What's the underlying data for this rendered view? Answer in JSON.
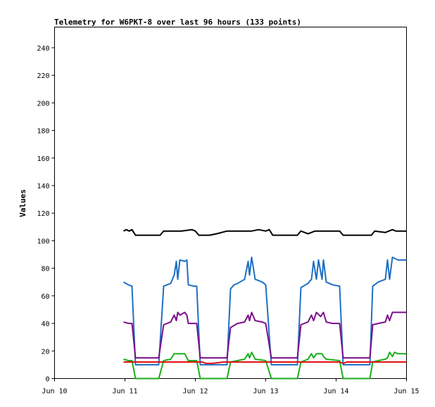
{
  "chart_data": {
    "type": "line",
    "title": "Telemetry for W6PKT-8 over last 96 hours (133 points)",
    "xlabel": "",
    "ylabel": "Values",
    "xlim": [
      0,
      5
    ],
    "ylim": [
      0,
      255
    ],
    "x_ticks": [
      {
        "value": 0,
        "label": "Jun 10"
      },
      {
        "value": 1,
        "label": "Jun 11"
      },
      {
        "value": 2,
        "label": "Jun 12"
      },
      {
        "value": 3,
        "label": "Jun 13"
      },
      {
        "value": 4,
        "label": "Jun 14"
      },
      {
        "value": 5,
        "label": "Jun 15"
      }
    ],
    "y_ticks": [
      0,
      20,
      40,
      60,
      80,
      100,
      120,
      140,
      160,
      180,
      200,
      220,
      240
    ],
    "grid": false,
    "colors": {
      "black": "#000000",
      "blue": "#1f6fc4",
      "purple": "#7b0f8a",
      "green": "#1aae1a",
      "red": "#e01010"
    },
    "series": [
      {
        "color": "#000000",
        "points": [
          [
            0.98,
            107
          ],
          [
            1.02,
            108
          ],
          [
            1.06,
            107
          ],
          [
            1.1,
            108
          ],
          [
            1.15,
            104
          ],
          [
            1.3,
            104
          ],
          [
            1.5,
            104
          ],
          [
            1.55,
            107
          ],
          [
            1.8,
            107
          ],
          [
            1.95,
            108
          ],
          [
            2.0,
            107
          ],
          [
            2.05,
            104
          ],
          [
            2.2,
            104
          ],
          [
            2.3,
            105
          ],
          [
            2.45,
            107
          ],
          [
            2.8,
            107
          ],
          [
            2.9,
            108
          ],
          [
            3.0,
            107
          ],
          [
            3.05,
            108
          ],
          [
            3.1,
            104
          ],
          [
            3.3,
            104
          ],
          [
            3.45,
            104
          ],
          [
            3.5,
            107
          ],
          [
            3.6,
            105
          ],
          [
            3.7,
            107
          ],
          [
            3.95,
            107
          ],
          [
            4.05,
            107
          ],
          [
            4.1,
            104
          ],
          [
            4.3,
            104
          ],
          [
            4.5,
            104
          ],
          [
            4.55,
            107
          ],
          [
            4.7,
            106
          ],
          [
            4.8,
            108
          ],
          [
            4.85,
            107
          ],
          [
            5.0,
            107
          ]
        ]
      },
      {
        "color": "#1f6fc4",
        "points": [
          [
            0.98,
            70
          ],
          [
            1.05,
            68
          ],
          [
            1.1,
            67
          ],
          [
            1.15,
            10
          ],
          [
            1.3,
            10
          ],
          [
            1.48,
            10
          ],
          [
            1.55,
            67
          ],
          [
            1.65,
            69
          ],
          [
            1.7,
            75
          ],
          [
            1.73,
            85
          ],
          [
            1.75,
            72
          ],
          [
            1.78,
            86
          ],
          [
            1.85,
            85
          ],
          [
            1.88,
            86
          ],
          [
            1.9,
            68
          ],
          [
            1.98,
            67
          ],
          [
            2.02,
            67
          ],
          [
            2.07,
            10
          ],
          [
            2.3,
            10
          ],
          [
            2.45,
            10
          ],
          [
            2.5,
            65
          ],
          [
            2.55,
            68
          ],
          [
            2.6,
            69
          ],
          [
            2.7,
            72
          ],
          [
            2.75,
            85
          ],
          [
            2.77,
            75
          ],
          [
            2.8,
            88
          ],
          [
            2.85,
            72
          ],
          [
            2.95,
            70
          ],
          [
            3.0,
            68
          ],
          [
            3.08,
            10
          ],
          [
            3.3,
            10
          ],
          [
            3.45,
            10
          ],
          [
            3.5,
            66
          ],
          [
            3.6,
            69
          ],
          [
            3.65,
            72
          ],
          [
            3.68,
            85
          ],
          [
            3.72,
            72
          ],
          [
            3.75,
            86
          ],
          [
            3.8,
            72
          ],
          [
            3.82,
            86
          ],
          [
            3.86,
            70
          ],
          [
            3.95,
            68
          ],
          [
            4.05,
            67
          ],
          [
            4.1,
            10
          ],
          [
            4.3,
            10
          ],
          [
            4.48,
            10
          ],
          [
            4.52,
            67
          ],
          [
            4.6,
            70
          ],
          [
            4.7,
            72
          ],
          [
            4.73,
            86
          ],
          [
            4.76,
            72
          ],
          [
            4.8,
            88
          ],
          [
            4.88,
            86
          ],
          [
            5.0,
            86
          ]
        ]
      },
      {
        "color": "#7b0f8a",
        "points": [
          [
            0.98,
            41
          ],
          [
            1.05,
            40
          ],
          [
            1.1,
            40
          ],
          [
            1.15,
            15
          ],
          [
            1.3,
            15
          ],
          [
            1.48,
            15
          ],
          [
            1.55,
            39
          ],
          [
            1.65,
            41
          ],
          [
            1.7,
            46
          ],
          [
            1.73,
            42
          ],
          [
            1.75,
            48
          ],
          [
            1.78,
            46
          ],
          [
            1.85,
            48
          ],
          [
            1.88,
            46
          ],
          [
            1.9,
            40
          ],
          [
            1.98,
            40
          ],
          [
            2.02,
            40
          ],
          [
            2.07,
            15
          ],
          [
            2.3,
            15
          ],
          [
            2.45,
            15
          ],
          [
            2.5,
            37
          ],
          [
            2.6,
            40
          ],
          [
            2.7,
            41
          ],
          [
            2.75,
            46
          ],
          [
            2.77,
            42
          ],
          [
            2.8,
            48
          ],
          [
            2.85,
            42
          ],
          [
            2.95,
            41
          ],
          [
            3.0,
            40
          ],
          [
            3.08,
            15
          ],
          [
            3.3,
            15
          ],
          [
            3.45,
            15
          ],
          [
            3.5,
            39
          ],
          [
            3.6,
            41
          ],
          [
            3.65,
            46
          ],
          [
            3.68,
            42
          ],
          [
            3.72,
            48
          ],
          [
            3.78,
            45
          ],
          [
            3.82,
            48
          ],
          [
            3.86,
            41
          ],
          [
            3.95,
            40
          ],
          [
            4.05,
            40
          ],
          [
            4.1,
            15
          ],
          [
            4.3,
            15
          ],
          [
            4.48,
            15
          ],
          [
            4.52,
            39
          ],
          [
            4.6,
            40
          ],
          [
            4.7,
            41
          ],
          [
            4.73,
            46
          ],
          [
            4.76,
            42
          ],
          [
            4.8,
            48
          ],
          [
            4.88,
            48
          ],
          [
            5.0,
            48
          ]
        ]
      },
      {
        "color": "#1aae1a",
        "points": [
          [
            0.98,
            14
          ],
          [
            1.05,
            13
          ],
          [
            1.1,
            13
          ],
          [
            1.15,
            0
          ],
          [
            1.3,
            0
          ],
          [
            1.48,
            0
          ],
          [
            1.55,
            13
          ],
          [
            1.65,
            14
          ],
          [
            1.7,
            18
          ],
          [
            1.75,
            18
          ],
          [
            1.85,
            18
          ],
          [
            1.9,
            13
          ],
          [
            2.02,
            13
          ],
          [
            2.07,
            0
          ],
          [
            2.3,
            0
          ],
          [
            2.45,
            0
          ],
          [
            2.5,
            12
          ],
          [
            2.6,
            13
          ],
          [
            2.7,
            14
          ],
          [
            2.75,
            18
          ],
          [
            2.77,
            15
          ],
          [
            2.8,
            19
          ],
          [
            2.85,
            14
          ],
          [
            3.0,
            13
          ],
          [
            3.08,
            0
          ],
          [
            3.3,
            0
          ],
          [
            3.45,
            0
          ],
          [
            3.5,
            12
          ],
          [
            3.6,
            14
          ],
          [
            3.65,
            18
          ],
          [
            3.68,
            15
          ],
          [
            3.72,
            18
          ],
          [
            3.8,
            18
          ],
          [
            3.82,
            16
          ],
          [
            3.86,
            14
          ],
          [
            4.05,
            13
          ],
          [
            4.1,
            0
          ],
          [
            4.3,
            0
          ],
          [
            4.48,
            0
          ],
          [
            4.52,
            12
          ],
          [
            4.6,
            13
          ],
          [
            4.7,
            14
          ],
          [
            4.73,
            15
          ],
          [
            4.76,
            19
          ],
          [
            4.8,
            16
          ],
          [
            4.83,
            19
          ],
          [
            4.88,
            18
          ],
          [
            5.0,
            18
          ]
        ]
      },
      {
        "color": "#e01010",
        "points": [
          [
            0.98,
            12
          ],
          [
            1.2,
            12
          ],
          [
            1.5,
            12
          ],
          [
            2.0,
            12
          ],
          [
            2.1,
            12
          ],
          [
            2.15,
            11
          ],
          [
            2.25,
            11
          ],
          [
            2.4,
            12
          ],
          [
            3.0,
            12
          ],
          [
            3.5,
            12
          ],
          [
            4.0,
            12
          ],
          [
            4.05,
            12
          ],
          [
            4.1,
            11
          ],
          [
            4.15,
            12
          ],
          [
            4.5,
            12
          ],
          [
            5.0,
            12
          ]
        ]
      }
    ]
  }
}
